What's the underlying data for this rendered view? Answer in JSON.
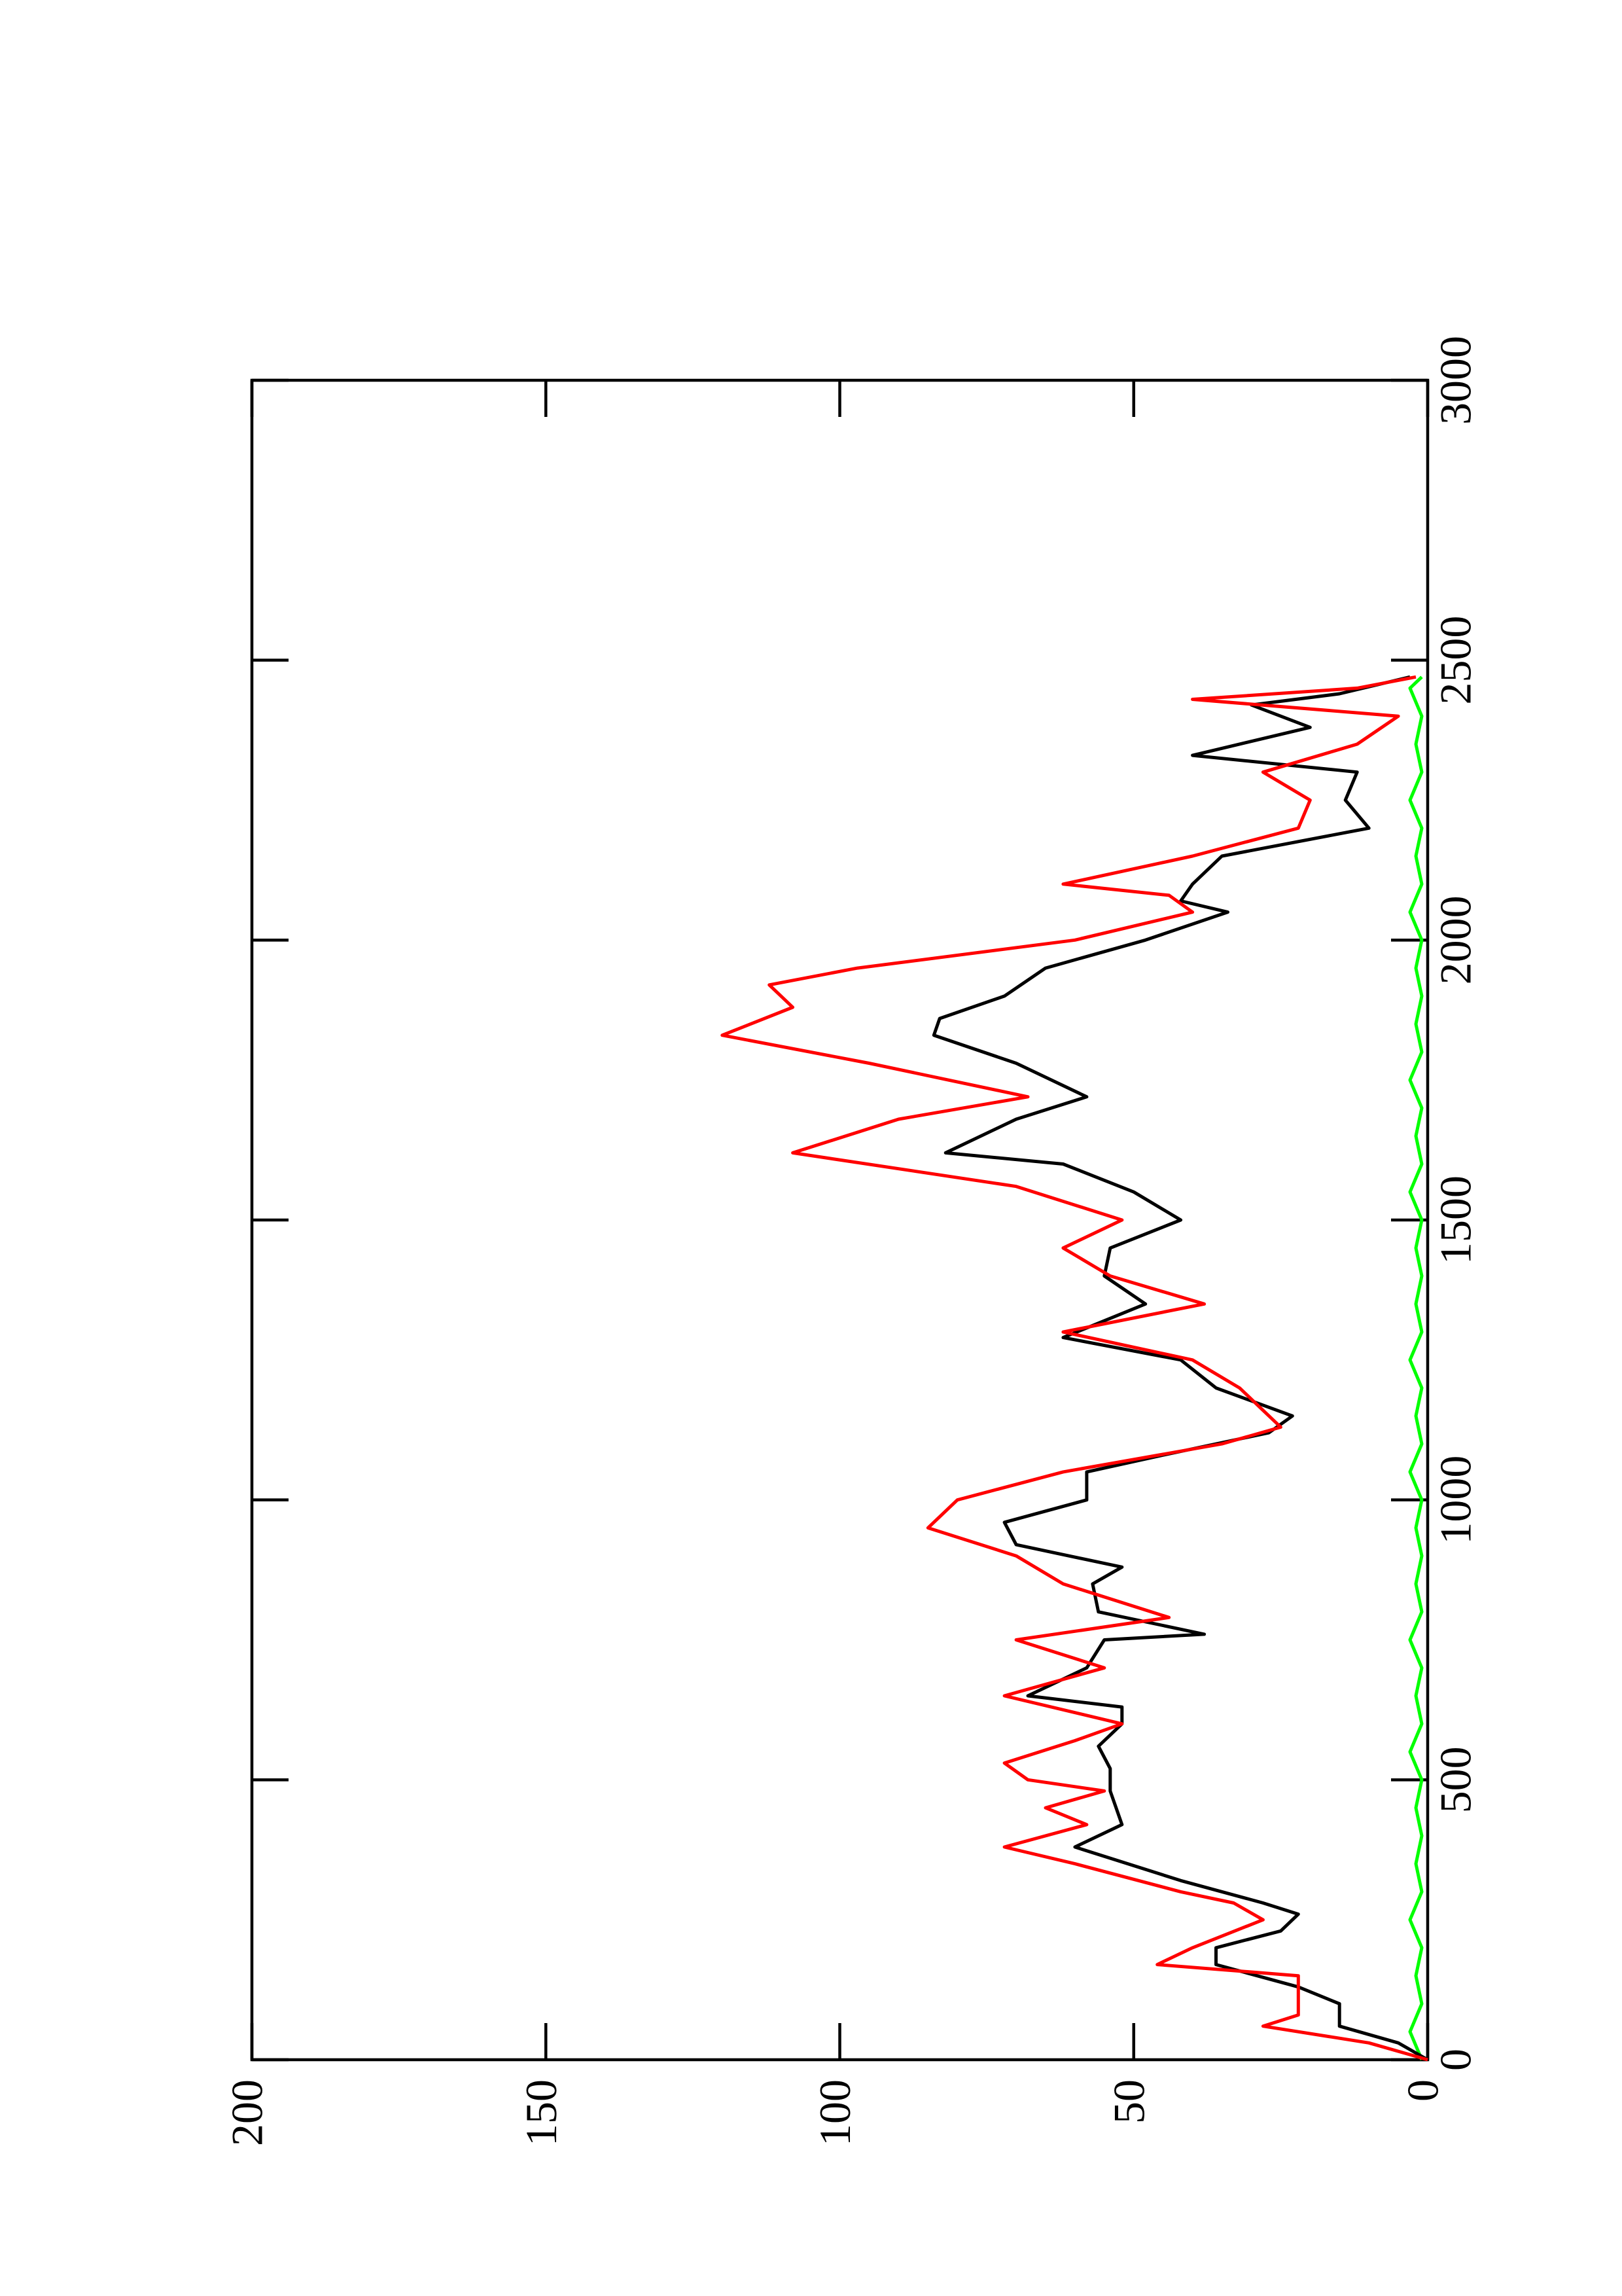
{
  "chart_data": {
    "type": "line",
    "xlim": [
      0,
      3000
    ],
    "xticks": [
      0,
      500,
      1000,
      1500,
      2000,
      2500,
      3000
    ],
    "ylim": [
      0,
      200
    ],
    "yticks": [
      0,
      50,
      100,
      150,
      200
    ],
    "series": [
      {
        "color": "#000000",
        "x": [
          0,
          30,
          60,
          100,
          130,
          170,
          200,
          230,
          260,
          280,
          320,
          380,
          420,
          480,
          520,
          560,
          600,
          630,
          650,
          700,
          750,
          760,
          800,
          850,
          880,
          920,
          960,
          1000,
          1050,
          1080,
          1120,
          1150,
          1200,
          1250,
          1290,
          1350,
          1400,
          1450,
          1500,
          1550,
          1600,
          1620,
          1680,
          1720,
          1780,
          1830,
          1860,
          1900,
          1950,
          2000,
          2050,
          2070,
          2100,
          2150,
          2200,
          2250,
          2300,
          2330,
          2380,
          2420,
          2440,
          2470
        ],
        "values": [
          0,
          5,
          15,
          15,
          22,
          36,
          36,
          25,
          22,
          28,
          42,
          60,
          52,
          54,
          54,
          56,
          52,
          52,
          68,
          58,
          55,
          38,
          56,
          57,
          52,
          70,
          72,
          58,
          58,
          45,
          27,
          23,
          36,
          42,
          62,
          48,
          55,
          54,
          42,
          50,
          62,
          82,
          70,
          58,
          70,
          84,
          83,
          72,
          65,
          48,
          34,
          42,
          40,
          35,
          10,
          14,
          12,
          40,
          20,
          30,
          15,
          3
        ]
      },
      {
        "color": "#ff0000",
        "x": [
          0,
          30,
          60,
          80,
          150,
          170,
          200,
          250,
          280,
          300,
          350,
          380,
          420,
          450,
          480,
          500,
          530,
          570,
          600,
          650,
          700,
          750,
          790,
          850,
          900,
          950,
          1000,
          1050,
          1100,
          1130,
          1160,
          1200,
          1250,
          1300,
          1350,
          1400,
          1450,
          1500,
          1560,
          1620,
          1680,
          1720,
          1780,
          1830,
          1880,
          1920,
          1950,
          2000,
          2050,
          2080,
          2100,
          2150,
          2200,
          2250,
          2300,
          2350,
          2400,
          2430,
          2450,
          2470
        ],
        "values": [
          0,
          10,
          28,
          22,
          22,
          46,
          40,
          28,
          33,
          42,
          60,
          72,
          58,
          65,
          55,
          68,
          72,
          60,
          52,
          72,
          55,
          70,
          44,
          62,
          70,
          85,
          80,
          62,
          35,
          25,
          28,
          32,
          40,
          62,
          38,
          54,
          62,
          52,
          70,
          108,
          90,
          68,
          95,
          120,
          108,
          112,
          97,
          60,
          40,
          44,
          62,
          40,
          22,
          20,
          28,
          12,
          5,
          40,
          12,
          2
        ]
      },
      {
        "color": "#00ff00",
        "x": [
          0,
          50,
          100,
          150,
          200,
          250,
          300,
          350,
          400,
          450,
          500,
          550,
          600,
          650,
          700,
          750,
          800,
          850,
          900,
          950,
          1000,
          1050,
          1100,
          1150,
          1200,
          1250,
          1300,
          1350,
          1400,
          1450,
          1500,
          1550,
          1600,
          1650,
          1700,
          1750,
          1800,
          1850,
          1900,
          1950,
          2000,
          2050,
          2100,
          2150,
          2200,
          2250,
          2300,
          2350,
          2400,
          2450,
          2470
        ],
        "values": [
          1,
          3,
          1,
          2,
          1,
          3,
          1,
          2,
          1,
          2,
          1,
          3,
          1,
          2,
          1,
          3,
          1,
          2,
          1,
          2,
          1,
          3,
          1,
          2,
          1,
          3,
          1,
          2,
          1,
          2,
          1,
          3,
          1,
          2,
          1,
          3,
          1,
          2,
          1,
          2,
          1,
          3,
          1,
          2,
          1,
          3,
          1,
          2,
          1,
          3,
          1
        ]
      }
    ]
  }
}
